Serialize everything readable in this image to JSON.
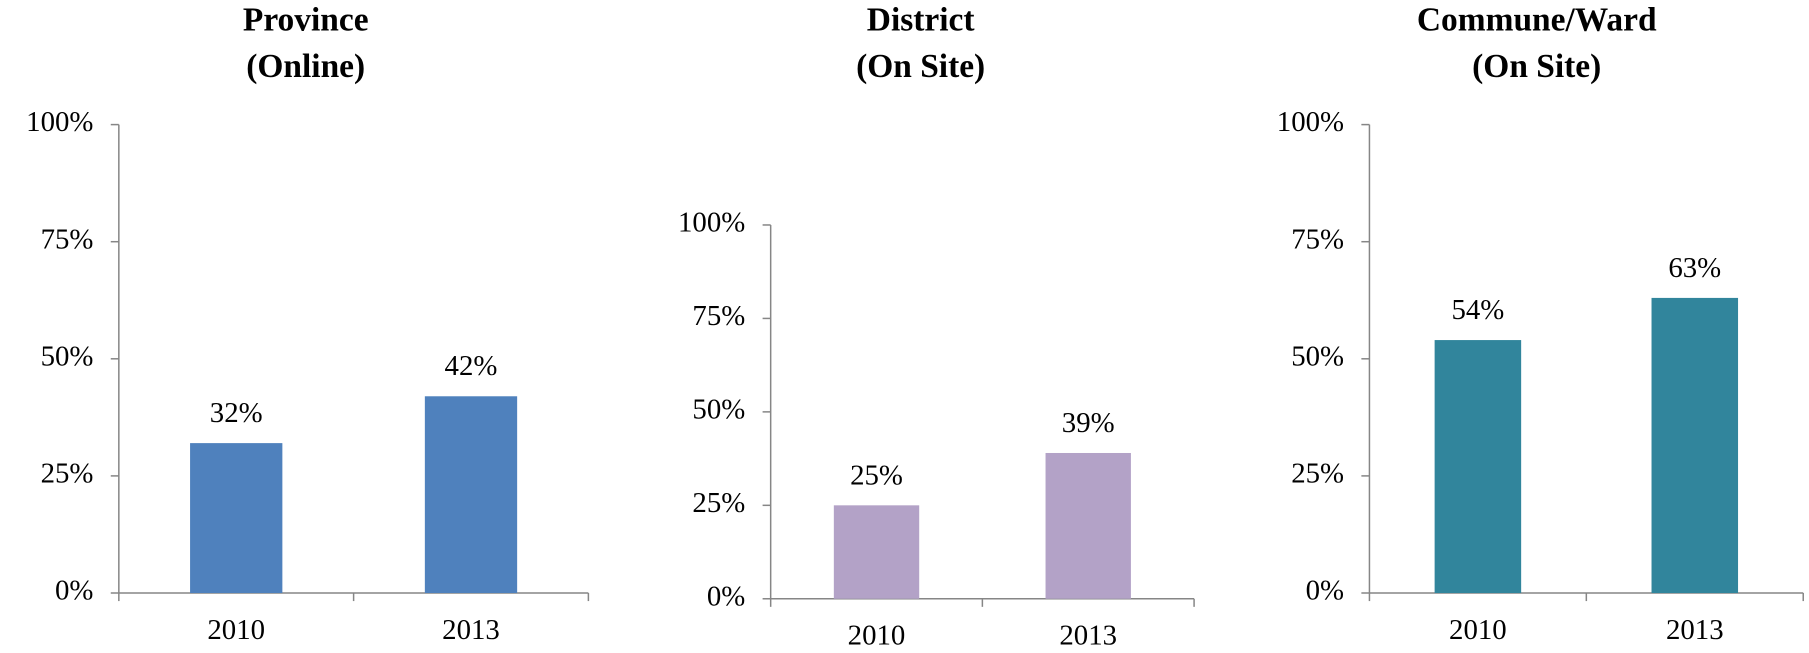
{
  "chart_data": [
    {
      "type": "bar",
      "title": [
        "Province",
        "(Online)"
      ],
      "categories": [
        "2010",
        "2013"
      ],
      "values": [
        32,
        42
      ],
      "value_labels": [
        "32%",
        "42%"
      ],
      "color": "#4f81bd",
      "ylim": [
        0,
        100
      ],
      "yticks": [
        {
          "value": 0,
          "label": "0%"
        },
        {
          "value": 25,
          "label": "25%"
        },
        {
          "value": 50,
          "label": "50%"
        },
        {
          "value": 75,
          "label": "75%"
        },
        {
          "value": 100,
          "label": "100%"
        }
      ]
    },
    {
      "type": "bar",
      "title": [
        "District",
        "(On Site)"
      ],
      "categories": [
        "2010",
        "2013"
      ],
      "values": [
        25,
        39
      ],
      "value_labels": [
        "25%",
        "39%"
      ],
      "color": "#b3a2c7",
      "ylim": [
        0,
        100
      ],
      "yticks": [
        {
          "value": 0,
          "label": "0%"
        },
        {
          "value": 25,
          "label": "25%"
        },
        {
          "value": 50,
          "label": "50%"
        },
        {
          "value": 75,
          "label": "75%"
        },
        {
          "value": 100,
          "label": "100%"
        }
      ]
    },
    {
      "type": "bar",
      "title": [
        "Commune/Ward",
        "(On Site)"
      ],
      "categories": [
        "2010",
        "2013"
      ],
      "values": [
        54,
        63
      ],
      "value_labels": [
        "54%",
        "63%"
      ],
      "color": "#31859c",
      "ylim": [
        0,
        100
      ],
      "yticks": [
        {
          "value": 0,
          "label": "0%"
        },
        {
          "value": 25,
          "label": "25%"
        },
        {
          "value": 50,
          "label": "50%"
        },
        {
          "value": 75,
          "label": "75%"
        },
        {
          "value": 100,
          "label": "100%"
        }
      ]
    }
  ]
}
